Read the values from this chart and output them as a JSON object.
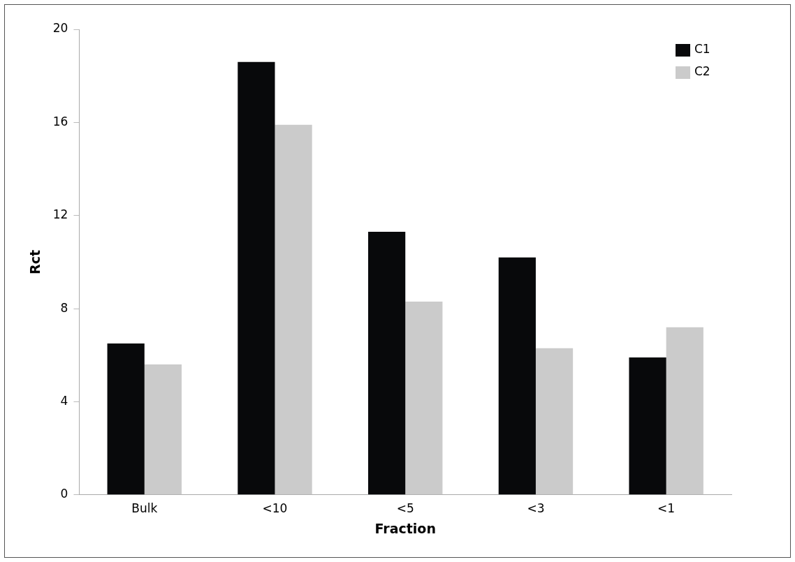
{
  "chart_data": {
    "type": "bar",
    "xlabel": "Fraction",
    "ylabel": "Rct",
    "categories": [
      "Bulk",
      "<10",
      "<5",
      "<3",
      "<1"
    ],
    "series": [
      {
        "name": "C1",
        "color": "#08090b",
        "values": [
          6.5,
          18.6,
          11.3,
          10.2,
          5.9
        ]
      },
      {
        "name": "C2",
        "color": "#cbcbcb",
        "values": [
          5.6,
          15.9,
          8.3,
          6.3,
          7.2
        ]
      }
    ],
    "ylim": [
      0,
      20
    ],
    "yticks": [
      0,
      4,
      8,
      12,
      16,
      20
    ],
    "grid": false,
    "legend": "top right"
  }
}
